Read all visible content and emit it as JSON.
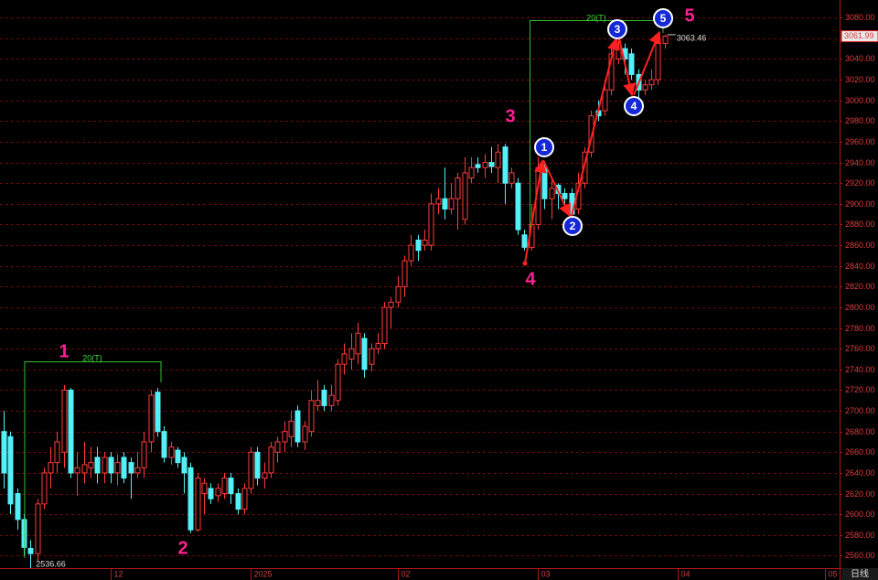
{
  "chart_data": {
    "type": "candlestick",
    "categories": [
      null,
      null,
      null,
      null,
      null,
      null,
      null,
      null,
      null,
      null,
      null,
      null,
      null,
      null,
      null,
      null,
      "12",
      null,
      null,
      null,
      null,
      null,
      null,
      null,
      null,
      null,
      null,
      null,
      null,
      null,
      null,
      null,
      null,
      null,
      null,
      null,
      null,
      "2025",
      null,
      null,
      null,
      null,
      null,
      null,
      null,
      null,
      null,
      null,
      null,
      null,
      null,
      null,
      null,
      null,
      null,
      null,
      null,
      null,
      null,
      "02",
      null,
      null,
      null,
      null,
      null,
      null,
      null,
      null,
      null,
      null,
      null,
      null,
      null,
      null,
      null,
      null,
      null,
      null,
      null,
      null,
      "03",
      null,
      null,
      null,
      null,
      null,
      null,
      null,
      null,
      null,
      null,
      null,
      null,
      null,
      null,
      null,
      null,
      null,
      null,
      null,
      null,
      "04",
      null,
      null,
      null,
      null,
      null,
      null,
      null,
      null,
      null,
      null,
      null,
      null,
      null,
      null,
      null,
      null,
      null,
      null,
      null,
      null,
      null,
      "05",
      null,
      null
    ],
    "open": [
      2680,
      2675,
      2620,
      2595,
      2567,
      2562,
      2610,
      2640,
      2650,
      2660,
      2720,
      2640,
      2640,
      2645,
      2655,
      2640,
      2655,
      2640,
      2655,
      2650,
      2640,
      2645,
      2670,
      2718,
      2680,
      2655,
      2662,
      2655,
      2645,
      2585,
      2620,
      2625,
      2618,
      2620,
      2635,
      2620,
      2605,
      2625,
      2660,
      2635,
      2640,
      2660,
      2670,
      2675,
      2700,
      2670,
      2680,
      2705,
      2720,
      2705,
      2710,
      2745,
      2750,
      2755,
      2770,
      2745,
      2760,
      2765,
      2800,
      2805,
      2820,
      2845,
      2865,
      2860,
      2860,
      2900,
      2905,
      2895,
      2905,
      2885,
      2925,
      2938,
      2935,
      2940,
      2935,
      2955,
      2920,
      2920,
      2870,
      2858,
      2880,
      2935,
      2905,
      2918,
      2910,
      2910,
      2895,
      2920,
      2950,
      2990,
      2990,
      3010,
      3040,
      3050,
      3045,
      3025,
      3010,
      3015,
      3020,
      3055,
      null,
      null,
      null,
      null,
      null,
      null,
      null,
      null,
      null,
      null,
      null,
      null,
      null,
      null,
      null,
      null,
      null,
      null,
      null,
      null,
      null,
      null,
      null,
      null,
      null,
      null
    ],
    "high": [
      2700,
      2680,
      2625,
      2600,
      2575,
      2615,
      2645,
      2665,
      2680,
      2725,
      2722,
      2660,
      2670,
      2665,
      2665,
      2660,
      2660,
      2658,
      2660,
      2655,
      2660,
      2680,
      2720,
      2722,
      2685,
      2670,
      2665,
      2660,
      2650,
      2640,
      2635,
      2630,
      2630,
      2640,
      2640,
      2625,
      2630,
      2665,
      2665,
      2650,
      2670,
      2675,
      2690,
      2700,
      2705,
      2690,
      2720,
      2730,
      2725,
      2725,
      2750,
      2765,
      2775,
      2785,
      2775,
      2765,
      2775,
      2805,
      2810,
      2830,
      2850,
      2870,
      2870,
      2875,
      2910,
      2915,
      2935,
      2920,
      2930,
      2945,
      2945,
      2945,
      2948,
      2955,
      2958,
      2958,
      2935,
      2925,
      2875,
      2900,
      2945,
      2940,
      2925,
      2920,
      2915,
      2915,
      2930,
      2955,
      2990,
      3000,
      3020,
      3055,
      3060,
      3055,
      3050,
      3030,
      3020,
      3030,
      3060,
      3063.46,
      null,
      null,
      null,
      null,
      null,
      null,
      null,
      null,
      null,
      null,
      null,
      null,
      null,
      null,
      null,
      null,
      null,
      null,
      null,
      null,
      null,
      null,
      null,
      null,
      null,
      null
    ],
    "low": [
      2625,
      2600,
      2585,
      2560,
      2536.66,
      2555,
      2605,
      2625,
      2640,
      2645,
      2635,
      2618,
      2630,
      2635,
      2630,
      2630,
      2630,
      2628,
      2630,
      2615,
      2635,
      2635,
      2660,
      2675,
      2650,
      2648,
      2645,
      2620,
      2582,
      2583,
      2600,
      2610,
      2612,
      2615,
      2610,
      2600,
      2600,
      2620,
      2628,
      2625,
      2635,
      2650,
      2660,
      2665,
      2665,
      2662,
      2675,
      2700,
      2700,
      2700,
      2705,
      2735,
      2740,
      2745,
      2732,
      2738,
      2755,
      2760,
      2780,
      2800,
      2810,
      2840,
      2845,
      2855,
      2855,
      2890,
      2885,
      2890,
      2875,
      2880,
      2920,
      2930,
      2925,
      2930,
      2920,
      2900,
      2915,
      2870,
      2855,
      2855,
      2875,
      2895,
      2885,
      2895,
      2895,
      2880,
      2890,
      2915,
      2945,
      2980,
      2985,
      3005,
      3035,
      3025,
      3020,
      3000,
      3005,
      3010,
      3015,
      3050,
      null,
      null,
      null,
      null,
      null,
      null,
      null,
      null,
      null,
      null,
      null,
      null,
      null,
      null,
      null,
      null,
      null,
      null,
      null,
      null,
      null,
      null,
      null,
      null,
      null,
      null
    ],
    "close": [
      2640,
      2610,
      2595,
      2568,
      2562,
      2610,
      2640,
      2650,
      2670,
      2720,
      2640,
      2645,
      2648,
      2650,
      2640,
      2655,
      2640,
      2650,
      2635,
      2640,
      2645,
      2670,
      2715,
      2680,
      2655,
      2665,
      2650,
      2640,
      2585,
      2635,
      2630,
      2615,
      2625,
      2635,
      2620,
      2605,
      2625,
      2660,
      2635,
      2640,
      2665,
      2670,
      2680,
      2690,
      2670,
      2685,
      2710,
      2710,
      2705,
      2715,
      2745,
      2755,
      2760,
      2775,
      2740,
      2760,
      2765,
      2800,
      2805,
      2820,
      2845,
      2860,
      2855,
      2865,
      2900,
      2905,
      2895,
      2905,
      2925,
      2930,
      2935,
      2935,
      2940,
      2936,
      2950,
      2920,
      2930,
      2875,
      2858,
      2880,
      2935,
      2905,
      2915,
      2910,
      2905,
      2890,
      2920,
      2950,
      2985,
      2985,
      3010,
      3045,
      3050,
      3040,
      3025,
      3010,
      3015,
      3020,
      3055,
      3061.99,
      null,
      null,
      null,
      null,
      null,
      null,
      null,
      null,
      null,
      null,
      null,
      null,
      null,
      null,
      null,
      null,
      null,
      null,
      null,
      null,
      null,
      null,
      null,
      null,
      null,
      null
    ],
    "up_color": "#ff3a3a",
    "down_color": "#54f0f8",
    "ylim": [
      2548,
      3097
    ],
    "yticks": [
      {
        "value": 2560,
        "label": "2560.00"
      },
      {
        "value": 2580,
        "label": "2580.00"
      },
      {
        "value": 2600,
        "label": "2600.00"
      },
      {
        "value": 2620,
        "label": "2620.00"
      },
      {
        "value": 2640,
        "label": "2640.00"
      },
      {
        "value": 2660,
        "label": "2660.00"
      },
      {
        "value": 2680,
        "label": "2680.00"
      },
      {
        "value": 2700,
        "label": "2700.00"
      },
      {
        "value": 2720,
        "label": "2720.00"
      },
      {
        "value": 2740,
        "label": "2740.00"
      },
      {
        "value": 2760,
        "label": "2760.00"
      },
      {
        "value": 2780,
        "label": "2780.00"
      },
      {
        "value": 2800,
        "label": "2800.00"
      },
      {
        "value": 2820,
        "label": "2820.00"
      },
      {
        "value": 2840,
        "label": "2840.00"
      },
      {
        "value": 2860,
        "label": "2860.00"
      },
      {
        "value": 2880,
        "label": "2880.00"
      },
      {
        "value": 2900,
        "label": "2900.00"
      },
      {
        "value": 2920,
        "label": "2920.00"
      },
      {
        "value": 2940,
        "label": "2940.00"
      },
      {
        "value": 2960,
        "label": "2960.00"
      },
      {
        "value": 2980,
        "label": "2980.00"
      },
      {
        "value": 3000,
        "label": "3000.00"
      },
      {
        "value": 3020,
        "label": "3020.00"
      },
      {
        "value": 3040,
        "label": "3040.00"
      },
      {
        "value": 3060,
        "label": "3060.00"
      },
      {
        "value": 3080,
        "label": "3080.00"
      }
    ],
    "grid": true,
    "low_label": 2536.66,
    "high_label": 3063.46,
    "last_price": 3061.99,
    "period": "日线",
    "annotations": {
      "wave_labels": [
        "1",
        "2",
        "3",
        "4",
        "5"
      ],
      "wave_markers": [
        "1",
        "2",
        "3",
        "4",
        "5"
      ],
      "range_labels": [
        "20(T)",
        "20(T)"
      ]
    }
  }
}
